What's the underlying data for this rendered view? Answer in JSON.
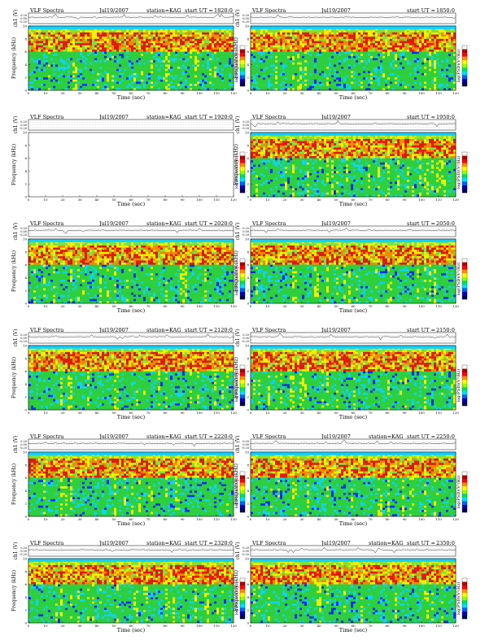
{
  "common": {
    "title": "VLF Spectra",
    "date": "Jul19/2007",
    "station": "station=KAG",
    "start_prefix": "start  UT =",
    "ylabel_top": "ch1 (V)",
    "ylabel_freq": "Frequency (kHz)",
    "xlabel": "Time (sec)",
    "cbar_label": "log(PSD)(V²/Hz)",
    "top_ticks": [
      "0.20",
      "0.00",
      "-0.20"
    ],
    "freq_ticks": [
      "0",
      "2",
      "4",
      "6",
      "8",
      "10"
    ],
    "time_ticks": [
      "0",
      "10",
      "20",
      "30",
      "40",
      "50",
      "60",
      "70",
      "80",
      "90",
      "100",
      "110",
      "120"
    ],
    "cbar_ticks": [
      "-",
      "-"
    ]
  },
  "chart_data": [
    {
      "type": "heatmap",
      "start_ut": "1820:0",
      "show_station": true,
      "has_data": true,
      "xlim": [
        0,
        120
      ],
      "ylim": [
        0,
        10
      ],
      "band_top_khz": 9.5,
      "red_band_khz": [
        6,
        9
      ]
    },
    {
      "type": "heatmap",
      "start_ut": "1850:0",
      "show_station": false,
      "has_data": true,
      "xlim": [
        0,
        120
      ],
      "ylim": [
        0,
        10
      ],
      "band_top_khz": 9.5,
      "red_band_khz": [
        6,
        9
      ]
    },
    {
      "type": "heatmap",
      "start_ut": "1920:0",
      "show_station": true,
      "has_data": false,
      "xlim": [
        0,
        120
      ],
      "ylim": [
        0,
        10
      ],
      "band_top_khz": 9.5,
      "red_band_khz": [
        6,
        9
      ]
    },
    {
      "type": "heatmap",
      "start_ut": "1950:0",
      "show_station": false,
      "has_data": true,
      "xlim": [
        0,
        120
      ],
      "ylim": [
        0,
        10
      ],
      "band_top_khz": 9.5,
      "red_band_khz": [
        6,
        9
      ]
    },
    {
      "type": "heatmap",
      "start_ut": "2020:0",
      "show_station": true,
      "has_data": true,
      "xlim": [
        0,
        120
      ],
      "ylim": [
        0,
        10
      ],
      "band_top_khz": 9.5,
      "red_band_khz": [
        6,
        9
      ]
    },
    {
      "type": "heatmap",
      "start_ut": "2050:0",
      "show_station": false,
      "has_data": true,
      "xlim": [
        0,
        120
      ],
      "ylim": [
        0,
        10
      ],
      "band_top_khz": 9.5,
      "red_band_khz": [
        6,
        9
      ]
    },
    {
      "type": "heatmap",
      "start_ut": "2120:0",
      "show_station": true,
      "has_data": true,
      "xlim": [
        0,
        120
      ],
      "ylim": [
        0,
        10
      ],
      "band_top_khz": 9.5,
      "red_band_khz": [
        6,
        9
      ]
    },
    {
      "type": "heatmap",
      "start_ut": "2150:0",
      "show_station": false,
      "has_data": true,
      "xlim": [
        0,
        120
      ],
      "ylim": [
        0,
        10
      ],
      "band_top_khz": 9.5,
      "red_band_khz": [
        6,
        9
      ]
    },
    {
      "type": "heatmap",
      "start_ut": "2220:0",
      "show_station": true,
      "has_data": true,
      "xlim": [
        0,
        120
      ],
      "ylim": [
        0,
        10
      ],
      "band_top_khz": 9.5,
      "red_band_khz": [
        6,
        9
      ]
    },
    {
      "type": "heatmap",
      "start_ut": "2250:0",
      "show_station": true,
      "has_data": true,
      "xlim": [
        0,
        120
      ],
      "ylim": [
        0,
        10
      ],
      "band_top_khz": 9.5,
      "red_band_khz": [
        6,
        9
      ]
    },
    {
      "type": "heatmap",
      "start_ut": "2320:0",
      "show_station": true,
      "has_data": true,
      "xlim": [
        0,
        120
      ],
      "ylim": [
        0,
        10
      ],
      "band_top_khz": 9.5,
      "red_band_khz": [
        6,
        9
      ]
    },
    {
      "type": "heatmap",
      "start_ut": "2350:0",
      "show_station": true,
      "has_data": true,
      "xlim": [
        0,
        120
      ],
      "ylim": [
        0,
        10
      ],
      "band_top_khz": 9.5,
      "red_band_khz": [
        6,
        9
      ]
    }
  ],
  "colors": {
    "background": "#0fd2ff",
    "noise_green": "#2ccf3c",
    "mid_green": "#7ee23a",
    "yellow": "#f0f000",
    "orange": "#f08a00",
    "red": "#e01a0e",
    "deep_blue": "#0a2cff",
    "cbar": [
      "#ffffff",
      "#b00000",
      "#ff0000",
      "#ff9000",
      "#ffff00",
      "#90ff00",
      "#00e060",
      "#00e0ff",
      "#0060ff",
      "#0000b0",
      "#000050"
    ]
  }
}
